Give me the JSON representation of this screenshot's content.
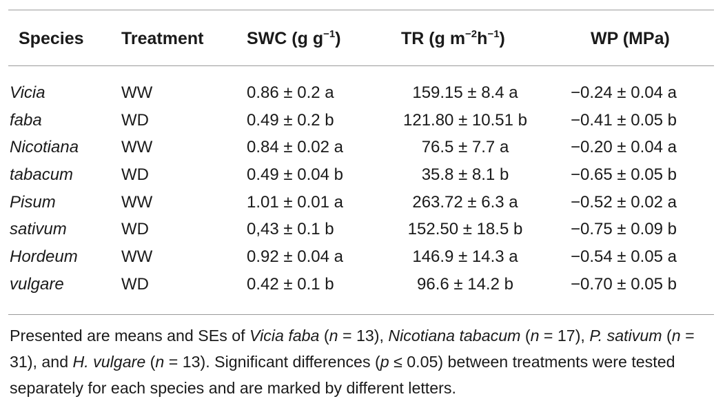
{
  "headers": {
    "species": "Species",
    "treatment": "Treatment",
    "swc": "SWC (g g",
    "swc_sup": "−1",
    "swc_end": ")",
    "tr": "TR (g m",
    "tr_sup1": "−2",
    "tr_mid": "h",
    "tr_sup2": "−1",
    "tr_end": ")",
    "wp": "WP (MPa)"
  },
  "rows": [
    {
      "species": "Vicia",
      "treatment": "WW",
      "swc": "0.86 ± 0.2 a",
      "tr": "159.15 ± 8.4 a",
      "wp": "−0.24 ± 0.04 a"
    },
    {
      "species": "faba",
      "treatment": "WD",
      "swc": "0.49 ± 0.2 b",
      "tr": "121.80 ± 10.51 b",
      "wp": "−0.41 ± 0.05 b"
    },
    {
      "species": "Nicotiana",
      "treatment": "WW",
      "swc": "0.84 ± 0.02 a",
      "tr": "76.5 ± 7.7 a",
      "wp": "−0.20 ± 0.04 a"
    },
    {
      "species": "tabacum",
      "treatment": "WD",
      "swc": "0.49 ± 0.04 b",
      "tr": "35.8 ± 8.1 b",
      "wp": "−0.65 ± 0.05 b"
    },
    {
      "species": "Pisum",
      "treatment": "WW",
      "swc": "1.01 ± 0.01 a",
      "tr": "263.72 ± 6.3 a",
      "wp": "−0.52 ± 0.02 a"
    },
    {
      "species": "sativum",
      "treatment": "WD",
      "swc": "0,43 ± 0.1 b",
      "tr": "152.50 ± 18.5 b",
      "wp": "−0.75 ± 0.09 b"
    },
    {
      "species": "Hordeum",
      "treatment": "WW",
      "swc": "0.92 ± 0.04 a",
      "tr": "146.9 ± 14.3 a",
      "wp": "−0.54 ± 0.05 a"
    },
    {
      "species": "vulgare",
      "treatment": "WD",
      "swc": "0.42 ± 0.1 b",
      "tr": "96.6 ± 14.2 b",
      "wp": "−0.70 ± 0.05 b"
    }
  ],
  "footnote": {
    "p1": "Presented are means and SEs of ",
    "vicia": "Vicia faba",
    "p2": " (",
    "n1": "n",
    "p3": " = 13), ",
    "nicotiana": "Nicotiana tabacum",
    "p4": " (",
    "n2": "n",
    "p5": " = 17), ",
    "pisum": "P. sativum",
    "p6": " (",
    "n3": "n",
    "p7": " = 31), and ",
    "hordeum": "H. vulgare",
    "p8": " (",
    "n4": "n",
    "p9": " = 13). Significant differences (",
    "pval": "p",
    "p10": " ≤ 0.05) between treatments were tested separately for each species and are marked by different letters."
  }
}
